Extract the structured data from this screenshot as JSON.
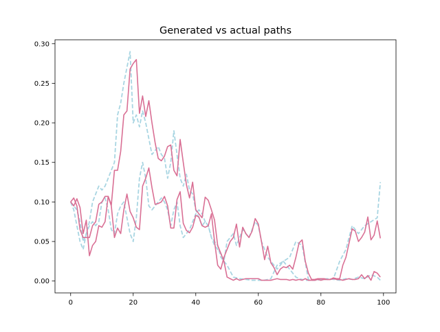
{
  "chart_data": {
    "type": "line",
    "title": "Generated vs actual paths",
    "xlabel": "",
    "ylabel": "",
    "xlim": [
      -5,
      104
    ],
    "ylim": [
      -0.015,
      0.305
    ],
    "x_ticks": [
      0,
      20,
      40,
      60,
      80,
      100
    ],
    "x_tick_labels": [
      "0",
      "20",
      "40",
      "60",
      "80",
      "100"
    ],
    "y_ticks": [
      0.0,
      0.05,
      0.1,
      0.15,
      0.2,
      0.25,
      0.3
    ],
    "y_tick_labels": [
      "0.00",
      "0.05",
      "0.10",
      "0.15",
      "0.20",
      "0.25",
      "0.30"
    ],
    "grid": false,
    "legend": "none",
    "colors": {
      "actual": "#a8d5e2",
      "generated": "#d96f94"
    },
    "series": [
      {
        "style": "dashed",
        "color": "#a8d5e2",
        "x": [
          0,
          1,
          2,
          3,
          4,
          5,
          6,
          7,
          8,
          9,
          10,
          11,
          12,
          13,
          14,
          15,
          16,
          17,
          18,
          19,
          20,
          21,
          22,
          23,
          24,
          25,
          26,
          27,
          28,
          29,
          30,
          31,
          32,
          33,
          34,
          35,
          36,
          37,
          38,
          39,
          40,
          41,
          42,
          43,
          44,
          45,
          46,
          47,
          48,
          49,
          50,
          52,
          54,
          56,
          58,
          60,
          62,
          64,
          66,
          68,
          70,
          72,
          74,
          76,
          78,
          80,
          82,
          84,
          86,
          88,
          90,
          92,
          94,
          96,
          98,
          99
        ],
        "y": [
          0.1,
          0.09,
          0.07,
          0.05,
          0.04,
          0.06,
          0.075,
          0.1,
          0.11,
          0.12,
          0.115,
          0.12,
          0.13,
          0.14,
          0.15,
          0.21,
          0.225,
          0.25,
          0.27,
          0.29,
          0.2,
          0.21,
          0.195,
          0.215,
          0.2,
          0.18,
          0.16,
          0.165,
          0.17,
          0.16,
          0.155,
          0.13,
          0.15,
          0.19,
          0.16,
          0.13,
          0.12,
          0.135,
          0.115,
          0.11,
          0.09,
          0.08,
          0.07,
          0.075,
          0.07,
          0.055,
          0.05,
          0.045,
          0.03,
          0.025,
          0.02,
          0.005,
          0.003,
          0.002,
          0.001,
          0.001,
          0.001,
          0.003,
          0.02,
          0.025,
          0.03,
          0.05,
          0.045,
          0.002,
          0.001,
          0.002,
          0.002,
          0.003,
          0.025,
          0.04,
          0.07,
          0.06,
          0.07,
          0.075,
          0.08,
          0.125
        ]
      },
      {
        "style": "dashed",
        "color": "#a8d5e2",
        "x": [
          0,
          1,
          2,
          3,
          4,
          5,
          6,
          7,
          8,
          9,
          10,
          11,
          12,
          13,
          14,
          15,
          16,
          17,
          18,
          19,
          20,
          21,
          22,
          23,
          24,
          25,
          26,
          27,
          28,
          29,
          30,
          31,
          32,
          33,
          34,
          35,
          36,
          37,
          38,
          39,
          40,
          41,
          42,
          43,
          44,
          45,
          46,
          47,
          48,
          49,
          50,
          51,
          52,
          53,
          54,
          55,
          56,
          57,
          58,
          59,
          60,
          61,
          62,
          63,
          64,
          65,
          66,
          67,
          68,
          69,
          70,
          71,
          72,
          73,
          74,
          75,
          76,
          77,
          78,
          80,
          82,
          84,
          86,
          88,
          90,
          92,
          94,
          96,
          98,
          99
        ],
        "y": [
          0.1,
          0.095,
          0.09,
          0.075,
          0.05,
          0.06,
          0.07,
          0.075,
          0.07,
          0.075,
          0.1,
          0.105,
          0.09,
          0.065,
          0.06,
          0.085,
          0.095,
          0.1,
          0.08,
          0.06,
          0.05,
          0.08,
          0.13,
          0.15,
          0.13,
          0.095,
          0.09,
          0.095,
          0.1,
          0.105,
          0.1,
          0.09,
          0.07,
          0.09,
          0.1,
          0.07,
          0.055,
          0.06,
          0.065,
          0.075,
          0.085,
          0.09,
          0.085,
          0.075,
          0.07,
          0.055,
          0.045,
          0.04,
          0.035,
          0.025,
          0.05,
          0.055,
          0.06,
          0.045,
          0.055,
          0.065,
          0.06,
          0.055,
          0.065,
          0.075,
          0.07,
          0.05,
          0.04,
          0.03,
          0.025,
          0.02,
          0.015,
          0.02,
          0.025,
          0.02,
          0.015,
          0.01,
          0.005,
          0.003,
          0.002,
          0.001,
          0.001,
          0.001,
          0.001,
          0.002,
          0.003,
          0.002,
          0.001,
          0.003,
          0.002,
          0.005,
          0.003,
          0.008,
          0.005,
          0.001
        ]
      },
      {
        "style": "solid",
        "color": "#d96f94",
        "x": [
          0,
          1,
          2,
          3,
          4,
          5,
          6,
          7,
          8,
          9,
          10,
          11,
          12,
          13,
          14,
          15,
          16,
          17,
          18,
          19,
          20,
          21,
          22,
          23,
          24,
          25,
          26,
          27,
          28,
          29,
          30,
          31,
          32,
          33,
          34,
          35,
          36,
          37,
          38,
          39,
          40,
          41,
          42,
          43,
          44,
          45,
          46,
          47,
          48,
          49,
          50,
          51,
          52,
          53,
          54,
          55,
          56,
          57,
          58,
          59,
          60,
          61,
          62,
          63,
          64,
          65,
          66,
          67,
          68,
          69,
          70,
          71,
          72,
          73,
          74,
          75,
          76,
          77,
          78,
          79,
          80,
          81,
          82,
          83,
          84,
          85,
          86,
          87,
          88,
          89,
          90,
          91,
          92,
          93,
          94,
          95,
          96,
          97,
          98,
          99
        ],
        "y": [
          0.1,
          0.105,
          0.095,
          0.065,
          0.055,
          0.055,
          0.055,
          0.07,
          0.075,
          0.097,
          0.1,
          0.107,
          0.107,
          0.096,
          0.14,
          0.14,
          0.164,
          0.21,
          0.215,
          0.268,
          0.275,
          0.28,
          0.212,
          0.234,
          0.208,
          0.228,
          0.2,
          0.175,
          0.155,
          0.152,
          0.158,
          0.17,
          0.172,
          0.14,
          0.133,
          0.179,
          0.15,
          0.122,
          0.105,
          0.125,
          0.09,
          0.085,
          0.08,
          0.106,
          0.102,
          0.09,
          0.077,
          0.045,
          0.035,
          0.025,
          0.005,
          0.003,
          0.001,
          0.003,
          0.001,
          0.002,
          0.003,
          0.003,
          0.003,
          0.003,
          0.003,
          0.001,
          0.001,
          0.001,
          0.001,
          0.002,
          0.003,
          0.002,
          0.002,
          0.002,
          0.001,
          0.002,
          0.001,
          0.002,
          0.001,
          0.003,
          0.001,
          0.001,
          0.001,
          0.002,
          0.001,
          0.002,
          0.002,
          0.002,
          0.003,
          0.002,
          0.002,
          0.001,
          0.002,
          0.003,
          0.002,
          0.002,
          0.003,
          0.008,
          0.003,
          0.007,
          0.001,
          0.012,
          0.01,
          0.005
        ]
      },
      {
        "style": "solid",
        "color": "#d96f94",
        "x": [
          0,
          1,
          2,
          3,
          4,
          5,
          6,
          7,
          8,
          9,
          10,
          11,
          12,
          13,
          14,
          15,
          16,
          17,
          18,
          19,
          20,
          21,
          22,
          23,
          24,
          25,
          26,
          27,
          28,
          29,
          30,
          31,
          32,
          33,
          34,
          35,
          36,
          37,
          38,
          39,
          40,
          41,
          42,
          43,
          44,
          45,
          46,
          47,
          48,
          49,
          50,
          51,
          52,
          53,
          54,
          55,
          56,
          57,
          58,
          59,
          60,
          61,
          62,
          63,
          64,
          65,
          66,
          67,
          68,
          69,
          70,
          71,
          72,
          73,
          74,
          75,
          76,
          77,
          78,
          79,
          80,
          81,
          82,
          83,
          84,
          85,
          86,
          87,
          88,
          89,
          90,
          91,
          92,
          93,
          94,
          95,
          96,
          97,
          98,
          99
        ],
        "y": [
          0.1,
          0.095,
          0.104,
          0.093,
          0.06,
          0.077,
          0.032,
          0.045,
          0.05,
          0.07,
          0.068,
          0.075,
          0.107,
          0.095,
          0.055,
          0.067,
          0.06,
          0.09,
          0.11,
          0.088,
          0.08,
          0.068,
          0.065,
          0.12,
          0.13,
          0.143,
          0.118,
          0.097,
          0.098,
          0.1,
          0.107,
          0.095,
          0.067,
          0.067,
          0.103,
          0.113,
          0.073,
          0.064,
          0.061,
          0.068,
          0.083,
          0.081,
          0.07,
          0.068,
          0.07,
          0.085,
          0.05,
          0.02,
          0.015,
          0.03,
          0.04,
          0.05,
          0.055,
          0.072,
          0.043,
          0.068,
          0.06,
          0.055,
          0.063,
          0.079,
          0.072,
          0.05,
          0.027,
          0.044,
          0.023,
          0.017,
          0.008,
          0.015,
          0.018,
          0.017,
          0.02,
          0.015,
          0.03,
          0.048,
          0.052,
          0.025,
          0.01,
          0.002,
          0.002,
          0.003,
          0.003,
          0.003,
          0.002,
          0.002,
          0.004,
          0.003,
          0.003,
          0.02,
          0.03,
          0.048,
          0.066,
          0.063,
          0.05,
          0.055,
          0.062,
          0.081,
          0.052,
          0.058,
          0.076,
          0.054
        ]
      }
    ]
  }
}
